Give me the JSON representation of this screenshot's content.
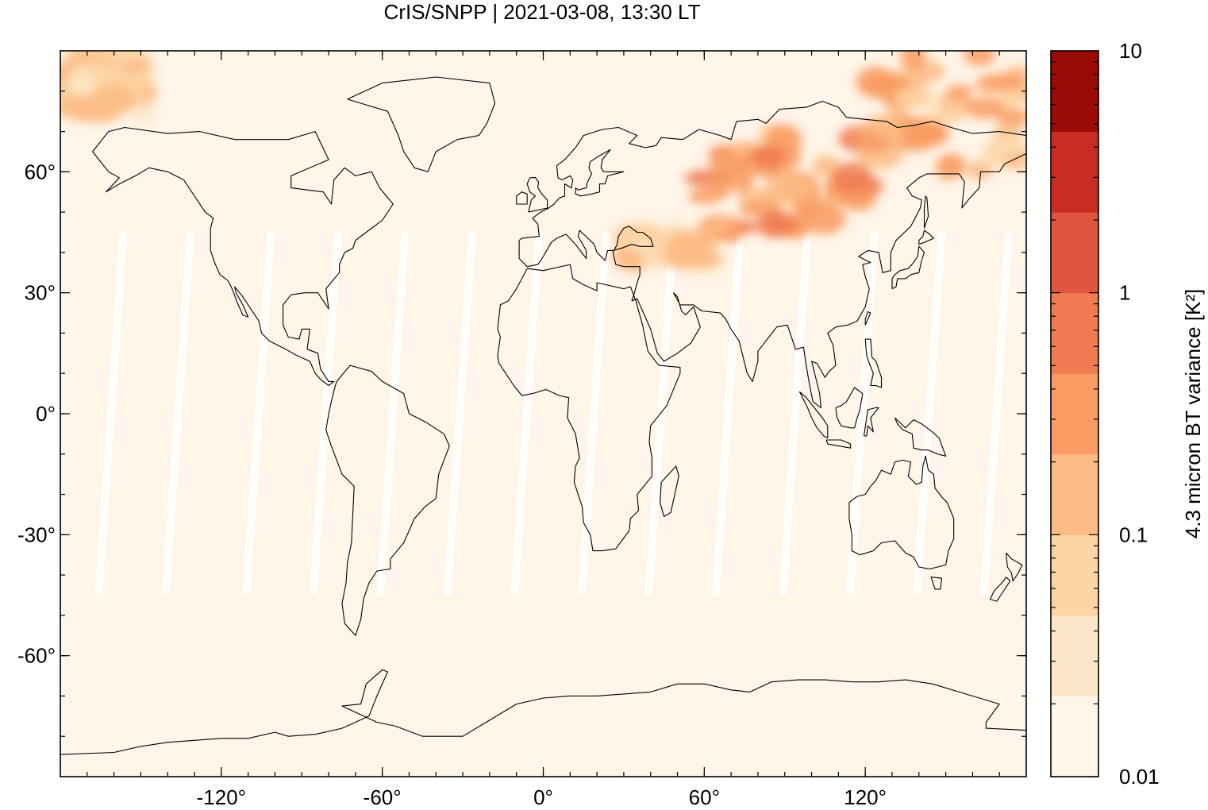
{
  "title": "CrIS/SNPP | 2021-03-08, 13:30 LT",
  "map": {
    "projection": "equirectangular",
    "lon_range": [
      -180,
      180
    ],
    "lat_range": [
      -90,
      90
    ],
    "background_color": "#fff5e8",
    "gap_color": "#ffffff",
    "x_ticks": [
      {
        "value": -120,
        "label": "-120°"
      },
      {
        "value": -60,
        "label": "-60°"
      },
      {
        "value": 0,
        "label": "0°"
      },
      {
        "value": 60,
        "label": "60°"
      },
      {
        "value": 120,
        "label": "120°"
      }
    ],
    "y_ticks": [
      {
        "value": 60,
        "label": "60°"
      },
      {
        "value": 30,
        "label": "30°"
      },
      {
        "value": 0,
        "label": "0°"
      },
      {
        "value": -30,
        "label": "-30°"
      },
      {
        "value": -60,
        "label": "-60°"
      }
    ]
  },
  "colorbar": {
    "label": "4.3 micron BT variance [K²]",
    "scale": "log",
    "range": [
      0.01,
      10
    ],
    "ticks": [
      "10",
      "1",
      "0.1",
      "0.01"
    ],
    "colors": [
      "#fff5e8",
      "#fde7c8",
      "#fdd5a4",
      "#fcbb84",
      "#f99b62",
      "#f07b51",
      "#e05540",
      "#c92d22",
      "#9b0b06"
    ]
  },
  "chart_data": {
    "type": "heatmap",
    "title": "CrIS/SNPP | 2021-03-08, 13:30 LT",
    "xlabel": "",
    "ylabel": "",
    "colorbar_label": "4.3 micron BT variance [K²]",
    "xlim": [
      -180,
      180
    ],
    "ylim": [
      -90,
      90
    ],
    "color_scale": "log",
    "color_range": [
      0.01,
      10
    ],
    "notable_regions": [
      {
        "lon_range": [
          60,
          120
        ],
        "lat_range": [
          45,
          70
        ],
        "approx_value": 0.3
      },
      {
        "lon_range": [
          120,
          180
        ],
        "lat_range": [
          60,
          90
        ],
        "approx_value": 0.2
      },
      {
        "lon_range": [
          -180,
          -150
        ],
        "lat_range": [
          75,
          90
        ],
        "approx_value": 0.1
      },
      {
        "lon_range": [
          30,
          60
        ],
        "lat_range": [
          38,
          45
        ],
        "approx_value": 0.07
      }
    ],
    "baseline_value": 0.015
  }
}
